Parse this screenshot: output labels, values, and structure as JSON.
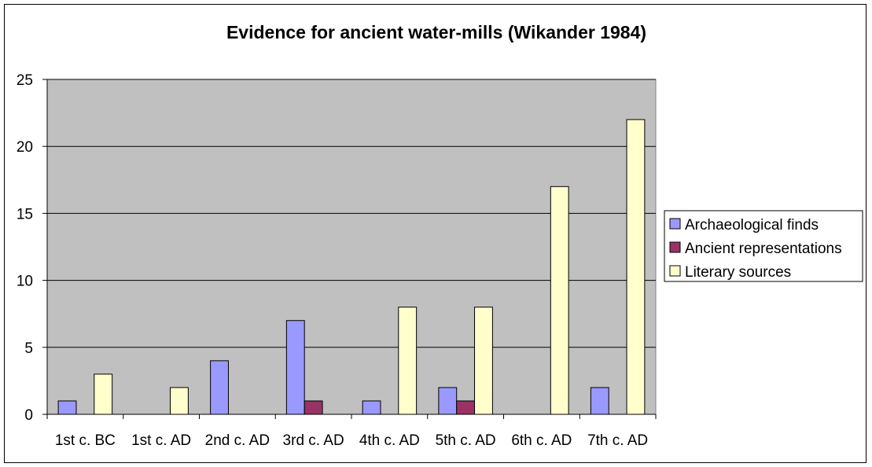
{
  "chart_data": {
    "type": "bar",
    "title": "Evidence for ancient water-mills (Wikander 1984)",
    "xlabel": "",
    "ylabel": "",
    "categories": [
      "1st c. BC",
      "1st c. AD",
      "2nd c. AD",
      "3rd c. AD",
      "4th c. AD",
      "5th c. AD",
      "6th c. AD",
      "7th c. AD"
    ],
    "series": [
      {
        "name": "Archaeological finds",
        "color": "#9999ff",
        "values": [
          1,
          0,
          4,
          7,
          1,
          2,
          0,
          2
        ]
      },
      {
        "name": "Ancient representations",
        "color": "#993366",
        "values": [
          0,
          0,
          0,
          1,
          0,
          1,
          0,
          0
        ]
      },
      {
        "name": "Literary sources",
        "color": "#ffffcc",
        "values": [
          3,
          2,
          0,
          0,
          8,
          8,
          17,
          22
        ]
      }
    ],
    "ylim": [
      0,
      25
    ],
    "yticks": [
      0,
      5,
      10,
      15,
      20,
      25
    ],
    "grid": true,
    "legend_position": "right",
    "plot_background": "#c0c0c0"
  }
}
